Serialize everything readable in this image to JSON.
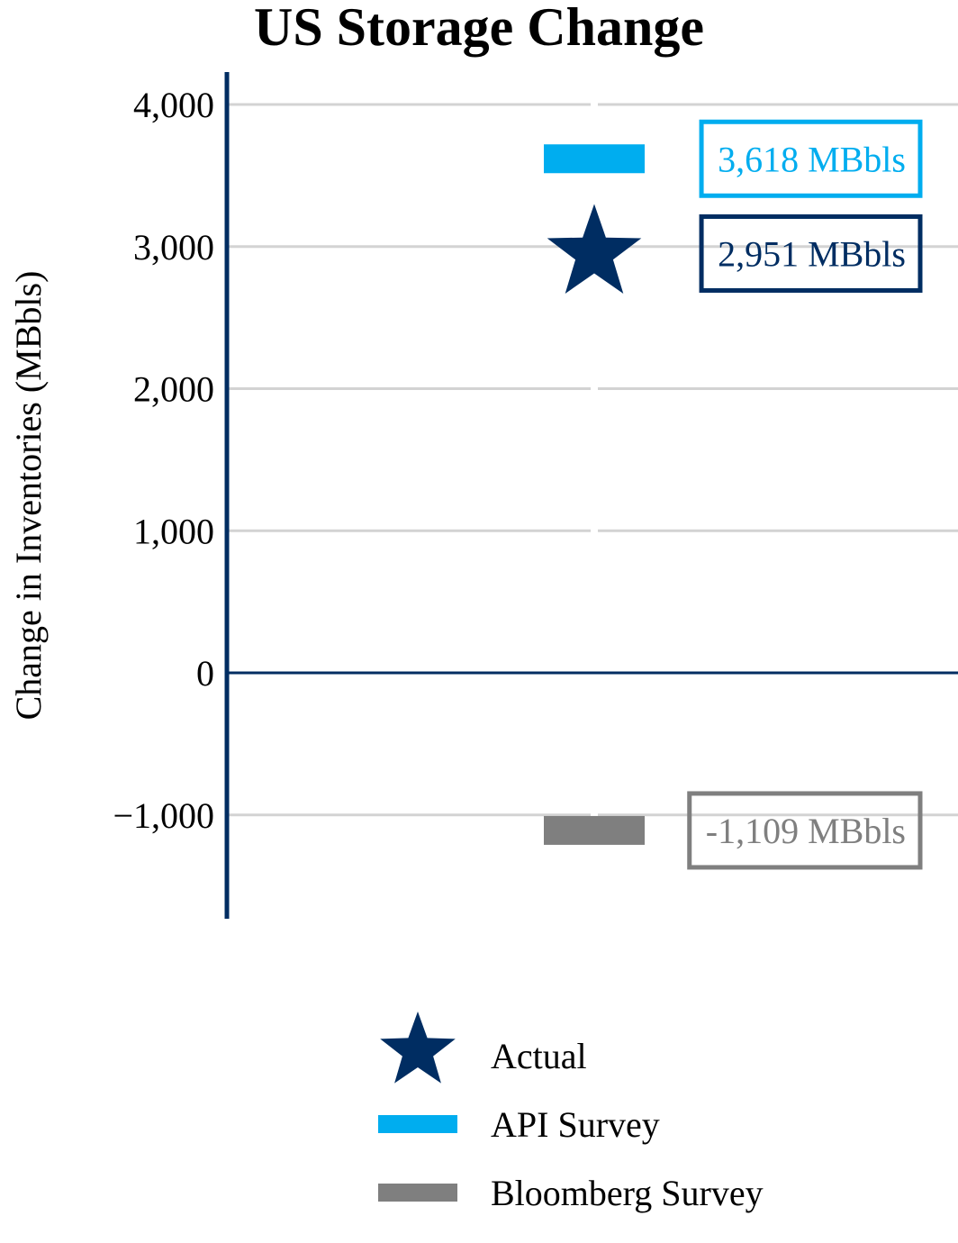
{
  "chart_data": {
    "type": "scatter",
    "title": "US Storage Change",
    "xlabel": "",
    "ylabel": "Change in Inventories (MBbls)",
    "ylim": [
      -1700,
      4250
    ],
    "yticks": [
      {
        "value": 4000,
        "label": "4,000"
      },
      {
        "value": 3000,
        "label": "3,000"
      },
      {
        "value": 2000,
        "label": "2,000"
      },
      {
        "value": 1000,
        "label": "1,000"
      },
      {
        "value": 0,
        "label": "0"
      },
      {
        "value": -1000,
        "label": "−1,000"
      }
    ],
    "grid": true,
    "legend_position": "bottom",
    "series": [
      {
        "name": "Actual",
        "marker": "star",
        "color": "#002D62",
        "value": 2951,
        "label": "2,951 MBbls"
      },
      {
        "name": "API Survey",
        "marker": "bar",
        "color": "#00ADEF",
        "value": 3618,
        "label": "3,618 MBbls"
      },
      {
        "name": "Bloomberg Survey",
        "marker": "bar",
        "color": "#7F7F7F",
        "value": -1109,
        "label": "-1,109 MBbls"
      }
    ]
  }
}
